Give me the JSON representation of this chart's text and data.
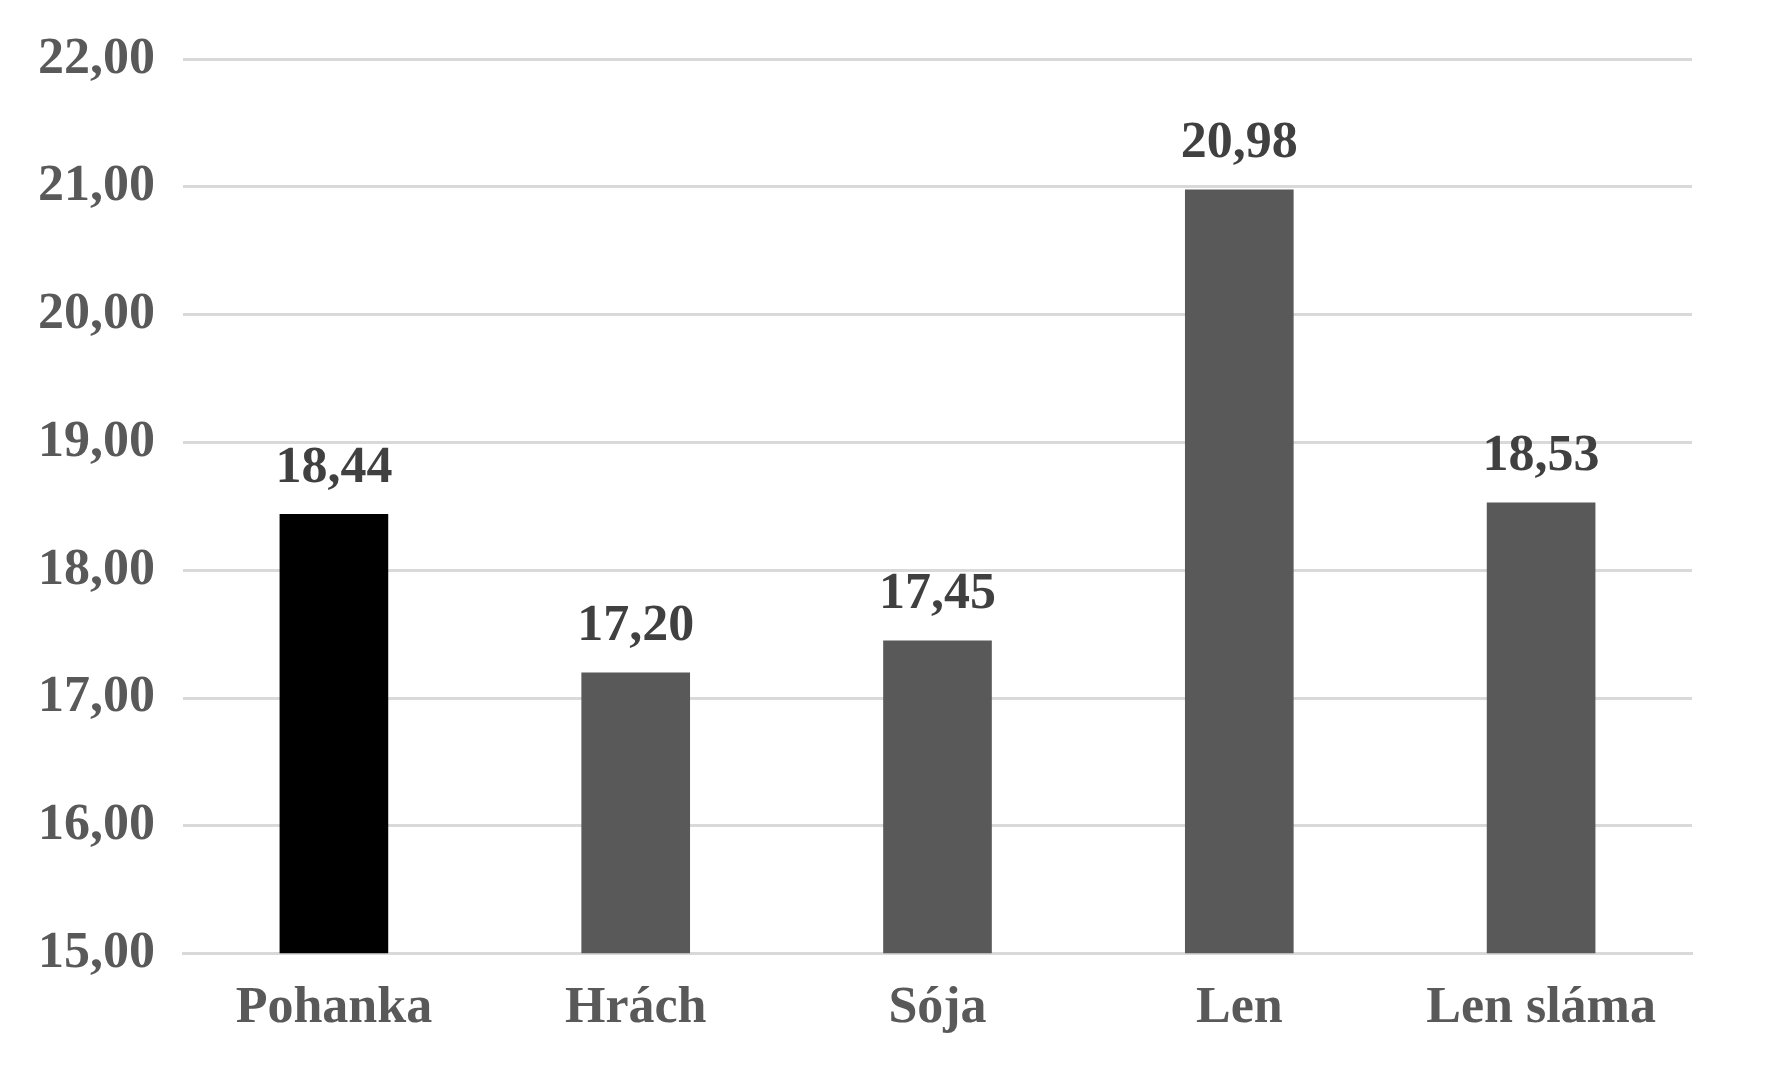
{
  "chart_data": {
    "type": "bar",
    "categories": [
      "Pohanka",
      "Hrách",
      "Sója",
      "Len",
      "Len sláma"
    ],
    "values": [
      18.44,
      17.2,
      17.45,
      20.98,
      18.53
    ],
    "value_labels": [
      "18,44",
      "17,20",
      "17,45",
      "20,98",
      "18,53"
    ],
    "colors": [
      "#000000",
      "#595959",
      "#595959",
      "#595959",
      "#595959"
    ],
    "ylim": [
      15,
      22
    ],
    "yticks": [
      {
        "value": 15,
        "label": "15,00"
      },
      {
        "value": 16,
        "label": "16,00"
      },
      {
        "value": 17,
        "label": "17,00"
      },
      {
        "value": 18,
        "label": "18,00"
      },
      {
        "value": 19,
        "label": "19,00"
      },
      {
        "value": 20,
        "label": "20,00"
      },
      {
        "value": 21,
        "label": "21,00"
      },
      {
        "value": 22,
        "label": "22,00"
      }
    ],
    "grid": "y",
    "legend": false
  }
}
